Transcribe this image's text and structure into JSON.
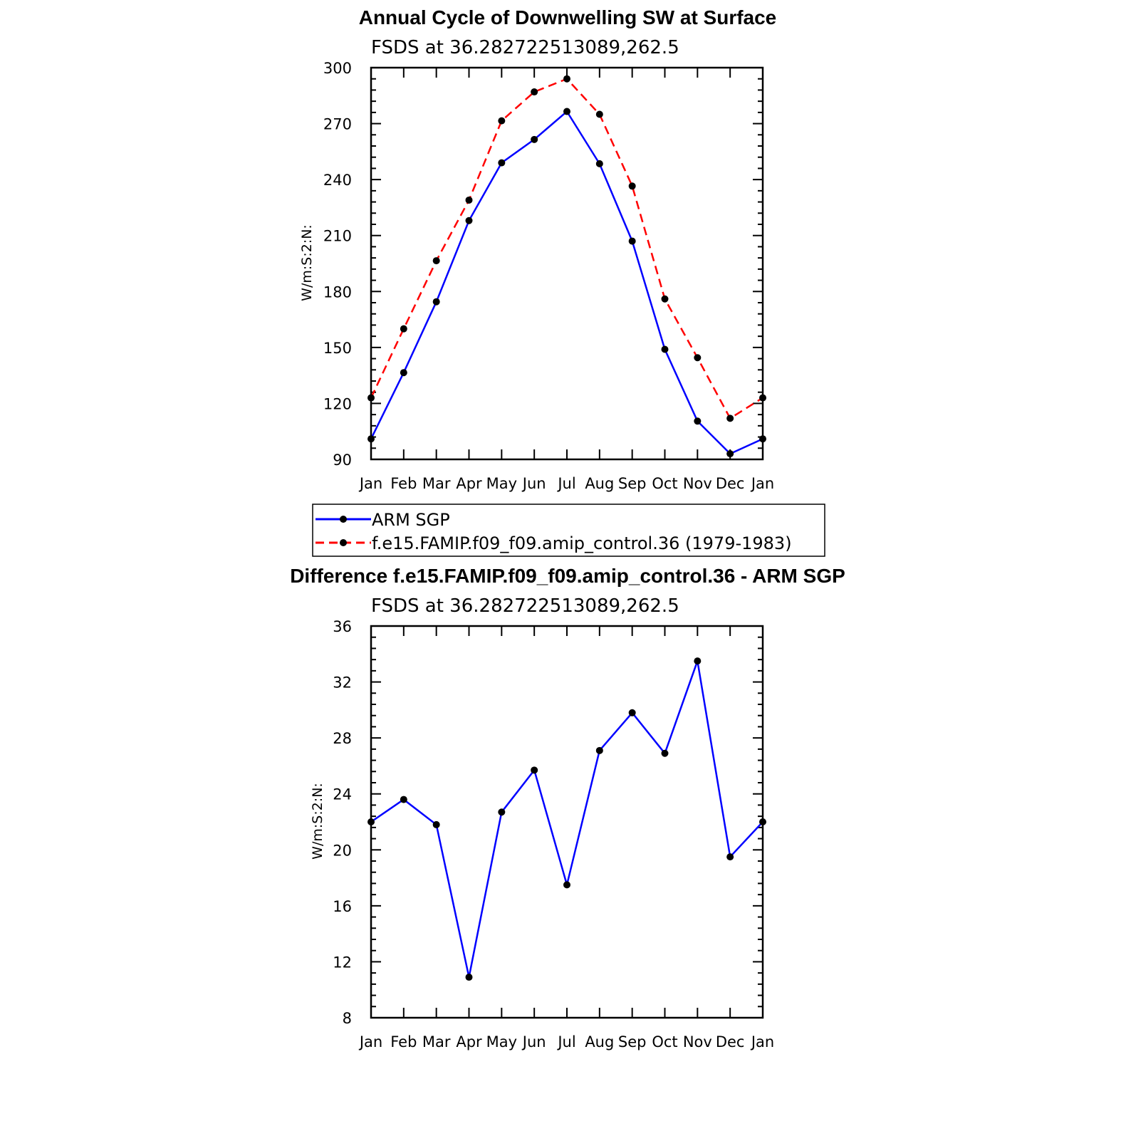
{
  "chart_data": [
    {
      "type": "line",
      "title": "Annual Cycle of Downwelling SW at Surface",
      "subtitle": "FSDS at 36.282722513089,262.5",
      "ylabel": "W/m:S:2:N:",
      "xlabel": "",
      "categories": [
        "Jan",
        "Feb",
        "Mar",
        "Apr",
        "May",
        "Jun",
        "Jul",
        "Aug",
        "Sep",
        "Oct",
        "Nov",
        "Dec",
        "Jan"
      ],
      "ylim": [
        90,
        300
      ],
      "yticks": [
        90,
        120,
        150,
        180,
        210,
        240,
        270,
        300
      ],
      "series": [
        {
          "name": "ARM SGP",
          "color": "#0000ff",
          "dash": "solid",
          "values": [
            101,
            136.5,
            174.5,
            218,
            249,
            261.5,
            276.5,
            248.5,
            207,
            149,
            110.5,
            93,
            101
          ]
        },
        {
          "name": "f.e15.FAMIP.f09_f09.amip_control.36 (1979-1983)",
          "color": "#ff0000",
          "dash": "dashed",
          "values": [
            123,
            160,
            196.5,
            229,
            271.5,
            287,
            294,
            275,
            236.5,
            176,
            144.5,
            112,
            123
          ]
        }
      ],
      "legend": "below"
    },
    {
      "type": "line",
      "title": "Difference f.e15.FAMIP.f09_f09.amip_control.36 - ARM SGP",
      "subtitle": "FSDS at 36.282722513089,262.5",
      "ylabel": "W/m:S:2:N:",
      "xlabel": "",
      "categories": [
        "Jan",
        "Feb",
        "Mar",
        "Apr",
        "May",
        "Jun",
        "Jul",
        "Aug",
        "Sep",
        "Oct",
        "Nov",
        "Dec",
        "Jan"
      ],
      "ylim": [
        8,
        36
      ],
      "yticks": [
        8,
        12,
        16,
        20,
        24,
        28,
        32,
        36
      ],
      "series": [
        {
          "color": "#0000ff",
          "dash": "solid",
          "values": [
            22,
            23.6,
            21.8,
            10.9,
            22.7,
            25.7,
            17.5,
            27.1,
            29.8,
            26.9,
            33.5,
            19.5,
            22
          ]
        }
      ]
    }
  ]
}
